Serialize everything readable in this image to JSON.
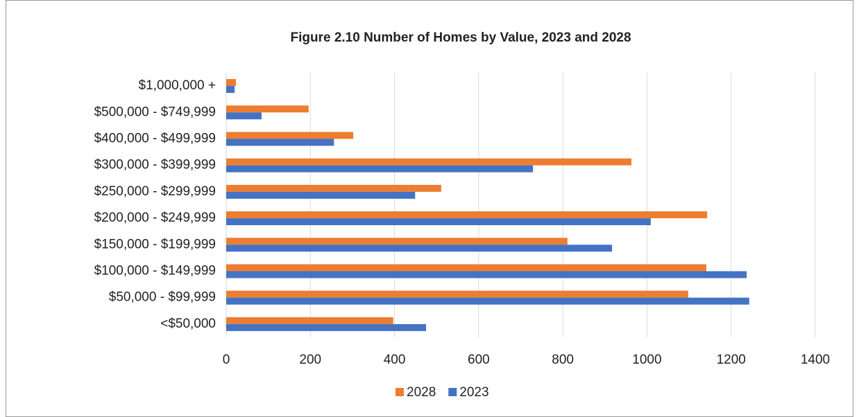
{
  "chart_data": {
    "type": "bar",
    "orientation": "horizontal",
    "title": "Figure 2.10  Number of Homes by Value, 2023 and 2028",
    "categories": [
      "$1,000,000 +",
      "$500,000 - $749,999",
      "$400,000 - $499,999",
      "$300,000 - $399,999",
      "$250,000 - $299,999",
      "$200,000 - $249,999",
      "$150,000 - $199,999",
      "$100,000 - $149,999",
      "$50,000 - $99,999",
      "<$50,000"
    ],
    "series": [
      {
        "name": "2028",
        "color": "#ed7d31",
        "values": [
          23,
          196,
          302,
          963,
          511,
          1143,
          811,
          1141,
          1098,
          397
        ]
      },
      {
        "name": "2023",
        "color": "#4472c4",
        "values": [
          20,
          84,
          256,
          729,
          449,
          1009,
          917,
          1237,
          1243,
          475
        ]
      }
    ],
    "xlim": [
      0,
      1400
    ],
    "xticks": [
      0,
      200,
      400,
      600,
      800,
      1000,
      1200,
      1400
    ],
    "grid": true,
    "legend": "bottom"
  }
}
